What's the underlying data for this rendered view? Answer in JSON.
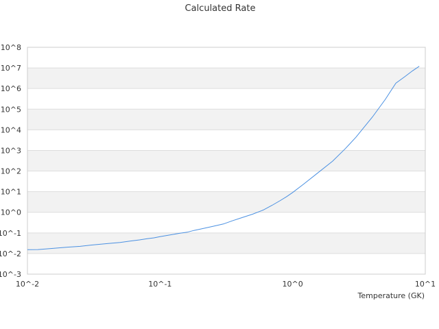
{
  "chart_data": {
    "type": "line",
    "title": "Calculated Rate",
    "xlabel": "Temperature (GK)",
    "ylabel": "",
    "x_scale": "log",
    "y_scale": "log",
    "xlim": [
      0.01,
      10
    ],
    "ylim": [
      0.001,
      100000000
    ],
    "x_ticks": [
      "10^-2",
      "10^-1",
      "10^0",
      "10^1"
    ],
    "y_ticks": [
      "10^-3",
      "10^-2",
      "10^-1",
      "10^0",
      "10^1",
      "10^2",
      "10^3",
      "10^4",
      "10^5",
      "10^6",
      "10^7",
      "10^8"
    ],
    "grid": "horizontal alternating bands",
    "legend": "none",
    "colors": {
      "line": "#4a90e2",
      "band": "#f2f2f2",
      "grid": "#dddddd",
      "text": "#333333"
    },
    "series": [
      {
        "x": [
          0.01,
          0.012,
          0.015,
          0.02,
          0.025,
          0.03,
          0.04,
          0.05,
          0.06,
          0.07,
          0.08,
          0.09,
          0.1,
          0.12,
          0.14,
          0.16,
          0.18,
          0.2,
          0.25,
          0.3,
          0.35,
          0.4,
          0.5,
          0.6,
          0.7,
          0.8,
          0.9,
          1.0,
          1.2,
          1.5,
          2.0,
          2.5,
          3.0,
          4.0,
          5.0,
          6.0,
          7.0,
          8.0,
          9.0
        ],
        "y": [
          0.0154,
          0.0156,
          0.0175,
          0.0204,
          0.0224,
          0.0256,
          0.0303,
          0.0343,
          0.0407,
          0.0459,
          0.0524,
          0.0579,
          0.0658,
          0.0808,
          0.0955,
          0.108,
          0.132,
          0.151,
          0.209,
          0.27,
          0.385,
          0.51,
          0.818,
          1.29,
          2.19,
          3.59,
          5.75,
          9.15,
          22.4,
          69.5,
          302,
          1230,
          4380,
          42200,
          300000,
          1830000,
          3760000,
          7180000,
          12000000
        ]
      }
    ]
  }
}
